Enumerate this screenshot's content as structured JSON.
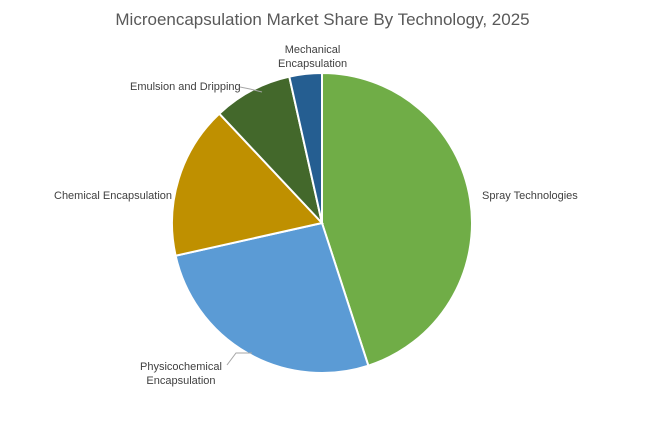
{
  "chart_data": {
    "type": "pie",
    "title": "Microencapsulation Market Share By Technology, 2025",
    "categories": [
      "Spray Technologies",
      "Physicochemical Encapsulation",
      "Chemical Encapsulation",
      "Emulsion and Dripping",
      "Mechanical Encapsulation"
    ],
    "label_lines": [
      [
        "Spray Technologies"
      ],
      [
        "Physicochemical",
        "Encapsulation"
      ],
      [
        "Chemical Encapsulation"
      ],
      [
        "Emulsion and Dripping"
      ],
      [
        "Mechanical",
        "Encapsulation"
      ]
    ],
    "values": [
      45,
      26.5,
      16.5,
      8.5,
      3.5
    ],
    "unit": "%",
    "colors": [
      "#70ad47",
      "#5b9bd5",
      "#bf9000",
      "#43682b",
      "#255e91"
    ],
    "start_angle": "12 o'clock",
    "direction": "clockwise",
    "legend": "none"
  }
}
